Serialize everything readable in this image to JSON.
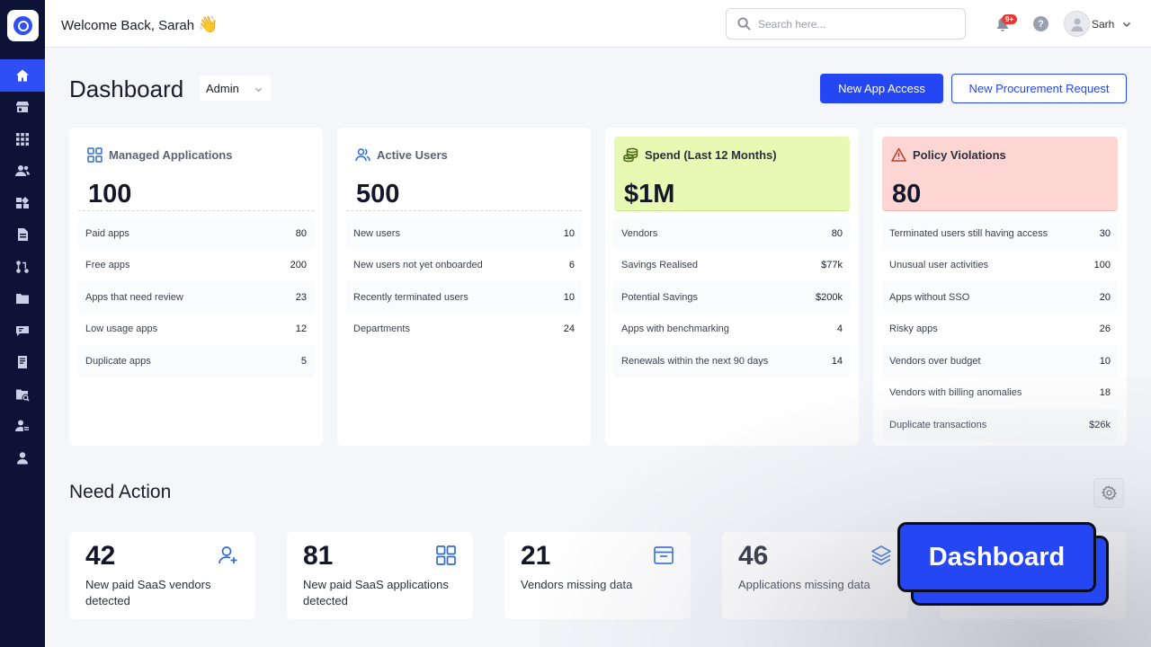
{
  "header": {
    "welcome": "Welcome Back, Sarah",
    "wave": "👋",
    "search_placeholder": "Search here...",
    "notification_badge": "9+",
    "help_label": "?",
    "user_name": "Sarh"
  },
  "sidebar": {
    "items": [
      "home-icon",
      "store-icon",
      "apps-grid-icon",
      "users-icon",
      "widgets-icon",
      "document-icon",
      "workflow-icon",
      "folder-icon",
      "feedback-icon",
      "contract-icon",
      "folder-search-icon",
      "user-settings-icon",
      "account-icon"
    ]
  },
  "page": {
    "title": "Dashboard",
    "role": "Admin",
    "new_app_access": "New App Access",
    "new_procurement": "New Procurement Request"
  },
  "cards": [
    {
      "label": "Managed Applications",
      "value": "100",
      "rows": [
        {
          "label": "Paid apps",
          "value": "80"
        },
        {
          "label": "Free apps",
          "value": "200"
        },
        {
          "label": "Apps that need review",
          "value": "23"
        },
        {
          "label": "Low usage apps",
          "value": "12"
        },
        {
          "label": "Duplicate apps",
          "value": "5"
        }
      ]
    },
    {
      "label": "Active Users",
      "value": "500",
      "rows": [
        {
          "label": "New users",
          "value": "10"
        },
        {
          "label": "New users not yet onboarded",
          "value": "6"
        },
        {
          "label": "Recently terminated users",
          "value": "10"
        },
        {
          "label": "Departments",
          "value": "24"
        }
      ]
    },
    {
      "label": "Spend (Last 12 Months)",
      "value": "$1M",
      "rows": [
        {
          "label": "Vendors",
          "value": "80"
        },
        {
          "label": "Savings Realised",
          "value": "$77k"
        },
        {
          "label": "Potential Savings",
          "value": "$200k"
        },
        {
          "label": "Apps with benchmarking",
          "value": "4"
        },
        {
          "label": "Renewals within the next 90 days",
          "value": "14"
        }
      ]
    },
    {
      "label": "Policy Violations",
      "value": "80",
      "rows": [
        {
          "label": "Terminated users still having access",
          "value": "30"
        },
        {
          "label": "Unusual user activities",
          "value": "100"
        },
        {
          "label": "Apps without SSO",
          "value": "20"
        },
        {
          "label": "Risky apps",
          "value": "26"
        },
        {
          "label": "Vendors over budget",
          "value": "10"
        },
        {
          "label": "Vendors with billing anomalies",
          "value": "18"
        },
        {
          "label": "Duplicate transactions",
          "value": "$26k"
        }
      ]
    }
  ],
  "need_action": {
    "title": "Need Action",
    "items": [
      {
        "value": "42",
        "text": "New paid SaaS vendors detected"
      },
      {
        "value": "81",
        "text": "New paid SaaS applications detected"
      },
      {
        "value": "21",
        "text": "Vendors missing data"
      },
      {
        "value": "46",
        "text": "Applications missing data"
      }
    ]
  },
  "overlay_label": "Dashboard",
  "colors": {
    "sidebar": "#0c1336",
    "accent": "#2447f3",
    "spend_bg": "#e7f9b3",
    "policy_bg": "#fdd6d3"
  }
}
